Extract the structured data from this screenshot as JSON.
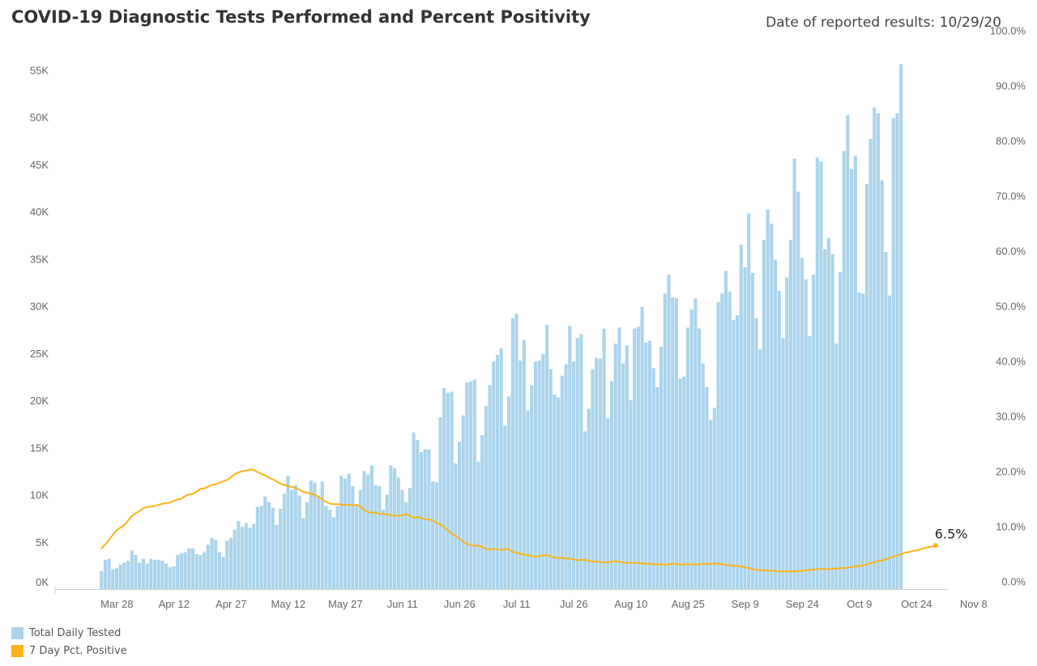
{
  "header": {
    "title": "COVID-19 Diagnostic Tests Performed and Percent Positivity",
    "date_label": "Date of reported results: 10/29/20"
  },
  "legend": [
    {
      "label": "Total Daily Tested",
      "color": "#abd4ec"
    },
    {
      "label": "7 Day Pct. Positive",
      "color": "#f8b319"
    }
  ],
  "chart_data": {
    "type": "bar",
    "x_start": "2020-03-24",
    "x_end": "2020-10-29",
    "x_ticks": [
      "Mar 28",
      "Apr 12",
      "Apr 27",
      "May 12",
      "May 27",
      "Jun 11",
      "Jun 26",
      "Jul 11",
      "Jul 26",
      "Aug 10",
      "Aug 25",
      "Sep 9",
      "Sep 24",
      "Oct 9",
      "Oct 24",
      "Nov 8"
    ],
    "y_left_ticks": [
      "0K",
      "5K",
      "10K",
      "15K",
      "20K",
      "25K",
      "30K",
      "35K",
      "40K",
      "45K",
      "50K",
      "55K"
    ],
    "y_right_ticks": [
      "0.0%",
      "10.0%",
      "20.0%",
      "30.0%",
      "40.0%",
      "50.0%",
      "60.0%",
      "70.0%",
      "80.0%",
      "90.0%",
      "100.0%"
    ],
    "ylim_left": [
      0,
      56000
    ],
    "ylim_right": [
      0,
      97
    ],
    "series": [
      {
        "name": "Total Daily Tested",
        "type": "bar",
        "color": "#abd4ec",
        "values": [
          1900,
          3100,
          3200,
          2100,
          2200,
          2600,
          2800,
          3000,
          4100,
          3600,
          2800,
          3200,
          2700,
          3200,
          3100,
          3100,
          3000,
          2700,
          2300,
          2400,
          3600,
          3800,
          3900,
          4300,
          4300,
          3700,
          3600,
          3900,
          4700,
          5400,
          5200,
          3900,
          3400,
          5100,
          5400,
          6300,
          7200,
          6600,
          7000,
          6500,
          6900,
          8700,
          8800,
          9800,
          9200,
          8600,
          6800,
          8500,
          10100,
          12000,
          10500,
          11000,
          9900,
          7500,
          9200,
          11500,
          11300,
          9900,
          11400,
          8800,
          8400,
          7600,
          8800,
          12000,
          11700,
          12200,
          10900,
          8800,
          10500,
          12500,
          12100,
          13100,
          11000,
          10900,
          8400,
          10000,
          13100,
          12800,
          11800,
          10500,
          9200,
          10700,
          16600,
          15800,
          14500,
          14800,
          14800,
          11400,
          11300,
          18200,
          21300,
          20800,
          20900,
          13300,
          15600,
          18400,
          21900,
          22000,
          22200,
          13500,
          16300,
          19400,
          21600,
          24100,
          24800,
          25500,
          17300,
          20400,
          28700,
          29200,
          24200,
          26400,
          18900,
          21600,
          24100,
          24200,
          24900,
          28000,
          23300,
          20600,
          20300,
          22600,
          23800,
          27900,
          24100,
          26600,
          27000,
          16700,
          19100,
          23300,
          24500,
          24400,
          27600,
          18100,
          22000,
          26000,
          27700,
          23900,
          25800,
          20000,
          27600,
          27800,
          29900,
          26100,
          26300,
          23400,
          21400,
          25700,
          31300,
          33300,
          30900,
          30800,
          22300,
          22500,
          27700,
          29600,
          30800,
          27600,
          23900,
          21400,
          17900,
          19200,
          30400,
          31300,
          33700,
          31500,
          28500,
          29000,
          36500,
          34100,
          39800,
          33500,
          28700,
          25400,
          37000,
          40200,
          38700,
          34900,
          31600,
          26600,
          33000,
          37000,
          45600,
          42100,
          35100,
          32800,
          26800,
          33300,
          45700,
          45300,
          36000,
          37200,
          35500,
          26000,
          33600,
          46400,
          50200,
          44500,
          45900,
          31400,
          31300,
          42900,
          47700,
          51000,
          50400,
          43300,
          35700,
          31100,
          49900,
          50400,
          55600
        ]
      },
      {
        "name": "7 Day Pct. Positive",
        "type": "line",
        "color": "#f8b319",
        "end_label": "6.5%",
        "values": [
          6.0,
          6.7,
          7.6,
          8.5,
          9.3,
          9.8,
          10.2,
          11.1,
          11.9,
          12.4,
          12.8,
          13.3,
          13.5,
          13.6,
          13.7,
          13.9,
          14.1,
          14.2,
          14.3,
          14.6,
          14.9,
          15.0,
          15.5,
          15.8,
          15.9,
          16.3,
          16.8,
          16.9,
          17.2,
          17.5,
          17.6,
          17.9,
          18.2,
          18.4,
          18.9,
          19.5,
          19.8,
          20.0,
          20.1,
          20.3,
          20.2,
          19.8,
          19.5,
          19.2,
          18.8,
          18.5,
          18.1,
          17.7,
          17.5,
          17.3,
          17.1,
          16.9,
          16.6,
          16.2,
          16.1,
          15.9,
          15.7,
          15.3,
          14.8,
          14.4,
          14.1,
          14.0,
          14.0,
          13.9,
          13.9,
          13.9,
          13.8,
          13.9,
          13.6,
          12.9,
          12.6,
          12.4,
          12.5,
          12.2,
          12.3,
          12.1,
          12.0,
          11.9,
          11.9,
          12.0,
          12.2,
          11.9,
          11.5,
          11.7,
          11.5,
          11.3,
          11.2,
          11.1,
          10.6,
          10.3,
          9.8,
          9.2,
          8.6,
          8.2,
          7.7,
          7.2,
          6.8,
          6.6,
          6.4,
          6.5,
          6.2,
          5.9,
          5.8,
          5.9,
          5.8,
          5.7,
          5.9,
          5.8,
          5.3,
          5.2,
          5.0,
          4.8,
          4.8,
          4.6,
          4.5,
          4.6,
          4.7,
          4.8,
          4.5,
          4.3,
          4.2,
          4.3,
          4.1,
          4.1,
          4.0,
          3.8,
          3.9,
          3.9,
          3.7,
          3.6,
          3.6,
          3.5,
          3.5,
          3.4,
          3.6,
          3.7,
          3.5,
          3.5,
          3.3,
          3.4,
          3.3,
          3.4,
          3.2,
          3.2,
          3.2,
          3.1,
          3.1,
          3.1,
          3.0,
          3.1,
          3.2,
          3.2,
          3.0,
          3.1,
          3.1,
          3.1,
          3.0,
          3.1,
          3.2,
          3.2,
          3.1,
          3.3,
          3.2,
          3.1,
          3.0,
          2.9,
          2.8,
          2.8,
          2.7,
          2.5,
          2.4,
          2.2,
          2.1,
          2.0,
          2.0,
          2.0,
          1.9,
          1.9,
          1.8,
          1.8,
          1.8,
          1.8,
          1.8,
          1.9,
          1.9,
          2.0,
          2.1,
          2.1,
          2.2,
          2.3,
          2.2,
          2.2,
          2.3,
          2.3,
          2.4,
          2.4,
          2.5,
          2.6,
          2.7,
          2.8,
          2.9,
          3.1,
          3.3,
          3.5,
          3.7,
          3.8,
          4.0,
          4.3,
          4.5,
          4.7,
          4.9,
          5.2,
          5.3,
          5.5,
          5.6,
          5.8,
          6.0,
          6.2,
          6.3,
          6.5
        ]
      }
    ],
    "grid": false,
    "legend_position": "bottom-left"
  }
}
